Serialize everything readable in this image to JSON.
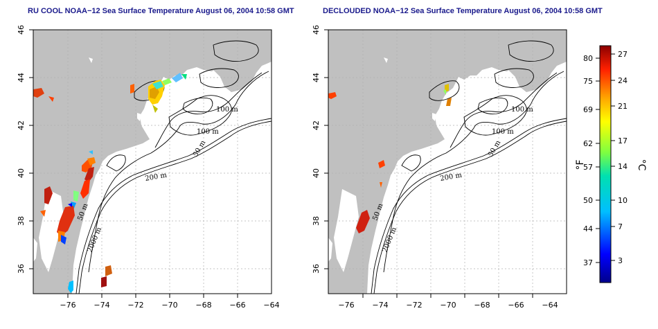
{
  "panels": [
    {
      "title": "RU COOL NOAA−12 Sea Surface Temperature August 06, 2004 10:58 GMT"
    },
    {
      "title": "DECLOUDED NOAA−12 Sea Surface Temperature August 06, 2004 10:58 GMT"
    }
  ],
  "axes": {
    "x_ticks": [
      "−76",
      "−74",
      "−72",
      "−70",
      "−68",
      "−66",
      "−64"
    ],
    "y_ticks": [
      "46",
      "44",
      "42",
      "40",
      "38",
      "36"
    ]
  },
  "contour_labels": {
    "a": "100 m",
    "b": "100 m",
    "c": "50 m",
    "d": "200 m",
    "e": "50 m",
    "f": "2000 m"
  },
  "colorbar": {
    "fahrenheit_ticks": [
      "80",
      "75",
      "69",
      "62",
      "57",
      "50",
      "44",
      "37"
    ],
    "celsius_ticks": [
      "27",
      "24",
      "21",
      "17",
      "14",
      "10",
      "7",
      "3"
    ],
    "fahrenheit_unit": "°F",
    "celsius_unit": "°C"
  },
  "colors": {
    "land": "#c0c0c0",
    "title": "#1a1a8c"
  }
}
